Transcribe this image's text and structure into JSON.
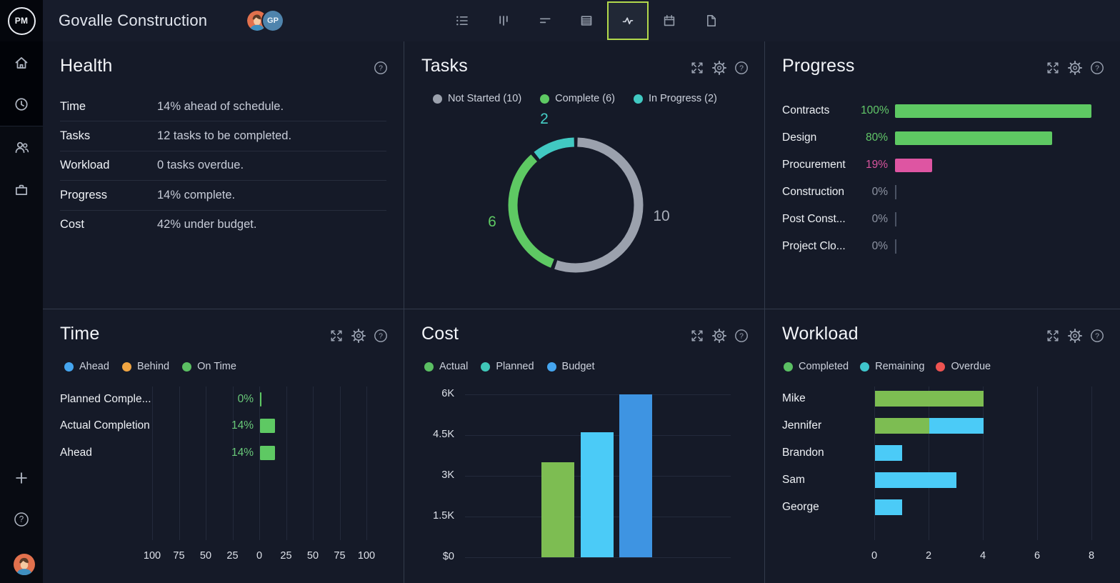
{
  "topbar": {
    "logo_text": "PM",
    "project_title": "Govalle Construction",
    "avatars": [
      {
        "kind": "image",
        "name": "member-avatar-photo"
      },
      {
        "kind": "initials",
        "initials": "GP",
        "bg": "#4f84ad"
      }
    ],
    "toolbar_items": [
      {
        "icon": "list-view-icon",
        "selected": false
      },
      {
        "icon": "board-view-icon",
        "selected": false
      },
      {
        "icon": "gantt-view-icon",
        "selected": false
      },
      {
        "icon": "table-view-icon",
        "selected": false
      },
      {
        "icon": "dashboard-view-icon",
        "selected": true
      },
      {
        "icon": "calendar-view-icon",
        "selected": false
      },
      {
        "icon": "document-view-icon",
        "selected": false
      }
    ]
  },
  "sidebar": {
    "top_items": [
      {
        "icon": "home-icon"
      },
      {
        "icon": "clock-icon"
      },
      {
        "icon": "team-icon"
      },
      {
        "icon": "briefcase-icon"
      }
    ],
    "bottom_items": [
      {
        "icon": "plus-icon"
      },
      {
        "icon": "help-icon"
      },
      {
        "icon": "user-avatar"
      }
    ]
  },
  "colors": {
    "accent_selected": "#b2d94b",
    "green": "#5ec963",
    "olive_green": "#7dbd52",
    "teal": "#41c9c2",
    "cyan": "#4bcbf7",
    "blue": "#45a5ef",
    "dark_blue": "#3e94e2",
    "orange": "#f0a542",
    "red": "#ee5351",
    "pink": "#de55a2",
    "gray": "#9ba1ad"
  },
  "panels": {
    "health": {
      "title": "Health",
      "header_icons": [
        "help-icon"
      ],
      "rows": [
        {
          "label": "Time",
          "value": "14% ahead of schedule."
        },
        {
          "label": "Tasks",
          "value": "12 tasks to be completed."
        },
        {
          "label": "Workload",
          "value": "0 tasks overdue."
        },
        {
          "label": "Progress",
          "value": "14% complete."
        },
        {
          "label": "Cost",
          "value": "42% under budget."
        }
      ]
    },
    "tasks": {
      "title": "Tasks",
      "header_icons": [
        "expand-icon",
        "gear-icon",
        "help-icon"
      ],
      "legend": [
        {
          "label": "Not Started (10)",
          "color": "#9ba1ad"
        },
        {
          "label": "Complete (6)",
          "color": "#5ec963"
        },
        {
          "label": "In Progress (2)",
          "color": "#41c9c2"
        }
      ],
      "chart_data": {
        "type": "pie",
        "subtype": "donut",
        "title": "Tasks",
        "segments": [
          {
            "label": "Not Started",
            "value": 10,
            "color": "#9ba1ad",
            "callout": "10",
            "callout_color": "#a9afba"
          },
          {
            "label": "Complete",
            "value": 6,
            "color": "#5ec963",
            "callout": "6",
            "callout_color": "#5ec963"
          },
          {
            "label": "In Progress",
            "value": 2,
            "color": "#41c9c2",
            "callout": "2",
            "callout_color": "#45cfc7"
          }
        ]
      }
    },
    "progress": {
      "title": "Progress",
      "header_icons": [
        "expand-icon",
        "gear-icon",
        "help-icon"
      ],
      "chart_data": {
        "type": "bar",
        "orientation": "horizontal",
        "title": "Progress",
        "max": 100,
        "rows": [
          {
            "label": "Contracts",
            "pct": 100,
            "pct_label": "100%",
            "bar_color": "#5ec963",
            "pct_color": "#62c869"
          },
          {
            "label": "Design",
            "pct": 80,
            "pct_label": "80%",
            "bar_color": "#5ec963",
            "pct_color": "#62c869"
          },
          {
            "label": "Procurement",
            "pct": 19,
            "pct_label": "19%",
            "bar_color": "#de55a2",
            "pct_color": "#d8549e"
          },
          {
            "label": "Construction",
            "pct": 0,
            "pct_label": "0%",
            "bar_color": null,
            "pct_color": "#8d93a2"
          },
          {
            "label": "Post Const...",
            "pct": 0,
            "pct_label": "0%",
            "bar_color": null,
            "pct_color": "#8d93a2"
          },
          {
            "label": "Project Clo...",
            "pct": 0,
            "pct_label": "0%",
            "bar_color": null,
            "pct_color": "#8d93a2"
          }
        ]
      }
    },
    "time": {
      "title": "Time",
      "header_icons": [
        "expand-icon",
        "gear-icon",
        "help-icon"
      ],
      "legend": [
        {
          "label": "Ahead",
          "color": "#45a5ef"
        },
        {
          "label": "Behind",
          "color": "#f0a542"
        },
        {
          "label": "On Time",
          "color": "#5bbf63"
        }
      ],
      "chart_data": {
        "type": "bar",
        "orientation": "horizontal-diverging",
        "title": "Time",
        "axis_ticks": [
          "100",
          "75",
          "50",
          "25",
          "0",
          "25",
          "50",
          "75",
          "100"
        ],
        "bar_color": "#5ec963",
        "pct_color": "#69c979",
        "rows": [
          {
            "label": "Planned Comple...",
            "pct": 0,
            "pct_label": "0%"
          },
          {
            "label": "Actual Completion",
            "pct": 14,
            "pct_label": "14%"
          },
          {
            "label": "Ahead",
            "pct": 14,
            "pct_label": "14%"
          }
        ]
      }
    },
    "cost": {
      "title": "Cost",
      "header_icons": [
        "expand-icon",
        "gear-icon",
        "help-icon"
      ],
      "legend": [
        {
          "label": "Actual",
          "color": "#5bbf63"
        },
        {
          "label": "Planned",
          "color": "#3fc7b8"
        },
        {
          "label": "Budget",
          "color": "#45a5ef"
        }
      ],
      "chart_data": {
        "type": "bar",
        "orientation": "vertical",
        "title": "Cost",
        "y_max": 6000,
        "y_ticks": [
          {
            "label": "6K",
            "value": 6000
          },
          {
            "label": "4.5K",
            "value": 4500
          },
          {
            "label": "3K",
            "value": 3000
          },
          {
            "label": "1.5K",
            "value": 1500
          },
          {
            "label": "$0",
            "value": 0
          }
        ],
        "bars": [
          {
            "label": "Actual",
            "value": 3500,
            "color": "#7dbd52"
          },
          {
            "label": "Planned",
            "value": 4600,
            "color": "#4bcbf7"
          },
          {
            "label": "Budget",
            "value": 6000,
            "color": "#3e94e2"
          }
        ]
      }
    },
    "workload": {
      "title": "Workload",
      "header_icons": [
        "expand-icon",
        "gear-icon",
        "help-icon"
      ],
      "legend": [
        {
          "label": "Completed",
          "color": "#5abf63"
        },
        {
          "label": "Remaining",
          "color": "#3fc5cc"
        },
        {
          "label": "Overdue",
          "color": "#ee5351"
        }
      ],
      "chart_data": {
        "type": "bar",
        "orientation": "horizontal-stacked",
        "title": "Workload",
        "x_ticks": [
          "0",
          "2",
          "4",
          "6",
          "8"
        ],
        "x_max": 8,
        "rows": [
          {
            "label": "Mike",
            "segments": [
              {
                "name": "Completed",
                "value": 4,
                "color": "#7dbd52"
              }
            ]
          },
          {
            "label": "Jennifer",
            "segments": [
              {
                "name": "Completed",
                "value": 2,
                "color": "#7dbd52"
              },
              {
                "name": "Remaining",
                "value": 2,
                "color": "#4bcbf7"
              }
            ]
          },
          {
            "label": "Brandon",
            "segments": [
              {
                "name": "Remaining",
                "value": 1,
                "color": "#4bcbf7"
              }
            ]
          },
          {
            "label": "Sam",
            "segments": [
              {
                "name": "Remaining",
                "value": 3,
                "color": "#4bcbf7"
              }
            ]
          },
          {
            "label": "George",
            "segments": [
              {
                "name": "Remaining",
                "value": 1,
                "color": "#4bcbf7"
              }
            ]
          }
        ]
      }
    }
  }
}
